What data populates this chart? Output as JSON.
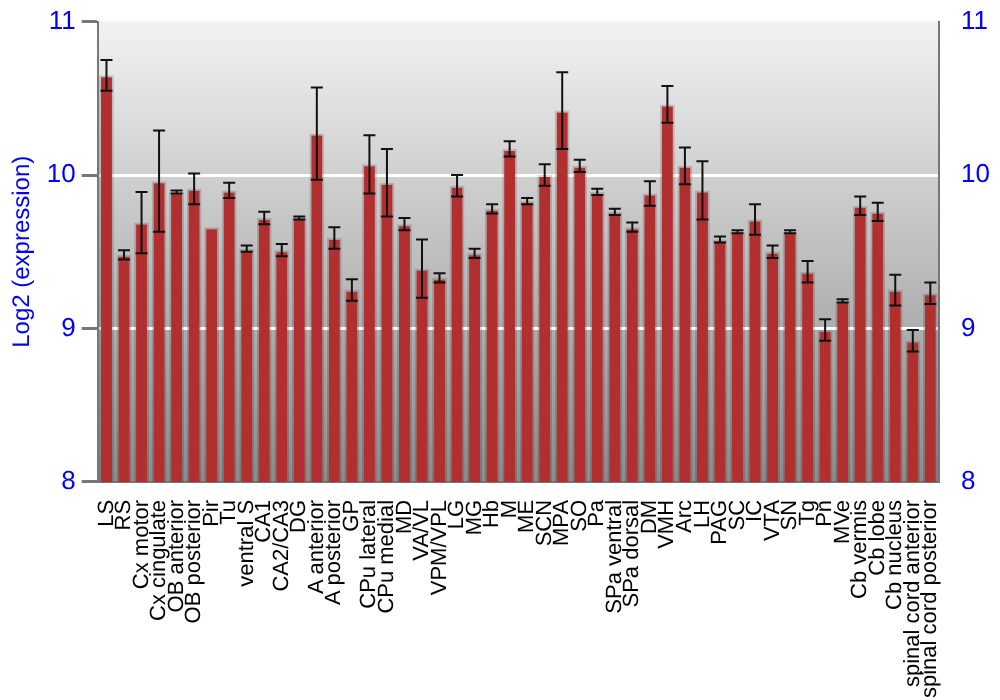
{
  "chart_data": {
    "type": "bar",
    "ylabel": "Log2 (expression)",
    "categories": [
      "LS",
      "RS",
      "Cx motor",
      "Cx cingulate",
      "OB anterior",
      "OB posterior",
      "Pir",
      "Tu",
      "ventral S",
      "CA1",
      "CA2/CA3",
      "DG",
      "A anterior",
      "A posterior",
      "GP",
      "CPu lateral",
      "CPu medial",
      "MD",
      "VA/VL",
      "VPM/VPL",
      "LG",
      "MG",
      "Hb",
      "M",
      "ME",
      "SCN",
      "MPA",
      "SO",
      "Pa",
      "SPa ventral",
      "SPa dorsal",
      "DM",
      "VMH",
      "Arc",
      "LH",
      "PAG",
      "SC",
      "IC",
      "VTA",
      "SN",
      "Tg",
      "Pn",
      "MVe",
      "Cb vermis",
      "Cb lobe",
      "Cb nucleus",
      "spinal cord anterior",
      "spinal cord posterior"
    ],
    "values": [
      10.65,
      9.48,
      9.69,
      9.96,
      9.89,
      9.91,
      9.66,
      9.9,
      9.52,
      9.72,
      9.51,
      9.72,
      10.27,
      9.59,
      9.25,
      10.07,
      9.95,
      9.68,
      9.39,
      9.33,
      9.93,
      9.49,
      9.78,
      10.17,
      9.83,
      10.0,
      10.42,
      10.06,
      9.89,
      9.76,
      9.66,
      9.88,
      10.46,
      10.06,
      9.9,
      9.58,
      9.63,
      9.71,
      9.5,
      9.63,
      9.37,
      8.99,
      9.18,
      9.8,
      9.76,
      9.25,
      8.92,
      9.23
    ],
    "errors": [
      0.1,
      0.03,
      0.2,
      0.33,
      0.01,
      0.1,
      null,
      0.05,
      0.02,
      0.04,
      0.04,
      0.01,
      0.3,
      0.07,
      0.07,
      0.19,
      0.22,
      0.04,
      0.19,
      0.03,
      0.07,
      0.03,
      0.03,
      0.05,
      0.02,
      0.07,
      0.25,
      0.04,
      0.02,
      0.02,
      0.03,
      0.08,
      0.12,
      0.12,
      0.19,
      0.02,
      0.01,
      0.1,
      0.04,
      0.01,
      0.07,
      0.07,
      0.01,
      0.06,
      0.06,
      0.1,
      0.07,
      0.07
    ],
    "color": "#b22f2f",
    "ylim": [
      8,
      11
    ],
    "yticks": [
      8,
      9,
      10,
      11
    ],
    "y2lim": [
      8,
      11
    ],
    "y2ticks": [
      8,
      9,
      10,
      11
    ],
    "grid": "y",
    "legend": false
  }
}
